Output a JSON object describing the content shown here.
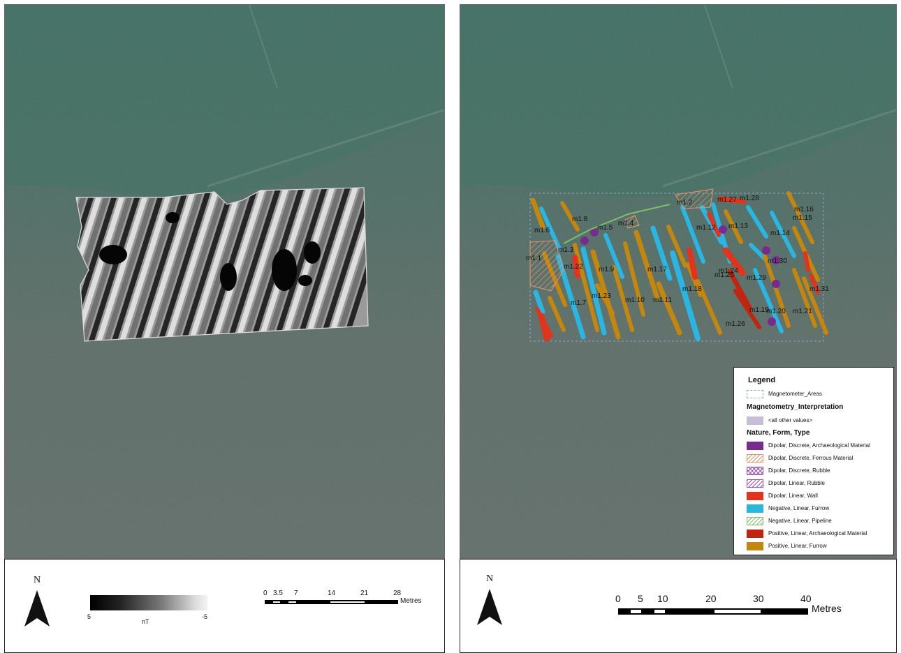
{
  "left_panel": {
    "north_label": "N",
    "gradient_min": "5",
    "gradient_unit": "nT",
    "gradient_max": "-5",
    "scale_ticks": [
      "0",
      "3.5",
      "7",
      "14",
      "21",
      "28"
    ],
    "scale_unit": "Metres"
  },
  "right_panel": {
    "north_label": "N",
    "scale_ticks": [
      "0",
      "5",
      "10",
      "20",
      "30",
      "40"
    ],
    "scale_unit": "Metres",
    "anomaly_labels": [
      "m1.1",
      "m1.2",
      "m1.3",
      "m1.4",
      "m1.5",
      "m1.6",
      "m1.7",
      "m1.8",
      "m1.9",
      "m1.10",
      "m1.11",
      "m1.12",
      "m1.13",
      "m1.14",
      "m1.15",
      "m1.16",
      "m1.17",
      "m1.18",
      "m1.19",
      "m1.20",
      "m1.21",
      "m1.22",
      "m1.23",
      "m1.24",
      "m1.25",
      "m1.26",
      "m1.27",
      "m1.28",
      "m1.29",
      "m1.30",
      "m1.31"
    ]
  },
  "legend": {
    "title": "Legend",
    "areas_label": "Magnetometer_Areas",
    "interp_title": "Magnetometry_Interpretation",
    "other_values": "<all other values>",
    "nft_title": "Nature, Form, Type",
    "items": [
      {
        "label": "Dipolar, Discrete, Archaeological Material",
        "color": "#7a2a8f",
        "pattern": "solid"
      },
      {
        "label": "Dipolar, Discrete, Ferrous Material",
        "color": "#e8946a",
        "pattern": "hatch"
      },
      {
        "label": "Dipolar, Discrete, Rubble",
        "color": "#9b4fbf",
        "pattern": "cross"
      },
      {
        "label": "Dipolar, Linear, Rubble",
        "color": "#9b4fbf",
        "pattern": "hatch"
      },
      {
        "label": "Dipolar, Linear, Wall",
        "color": "#e2341c",
        "pattern": "solid"
      },
      {
        "label": "Negative, Linear, Furrow",
        "color": "#29b6e3",
        "pattern": "solid"
      },
      {
        "label": "Negative, Linear, Pipeline",
        "color": "#7dc06a",
        "pattern": "hatch"
      },
      {
        "label": "Positive, Linear, Archaeological Material",
        "color": "#c0260f",
        "pattern": "solid"
      },
      {
        "label": "Positive, Linear, Furrow",
        "color": "#c4860c",
        "pattern": "solid"
      }
    ]
  }
}
